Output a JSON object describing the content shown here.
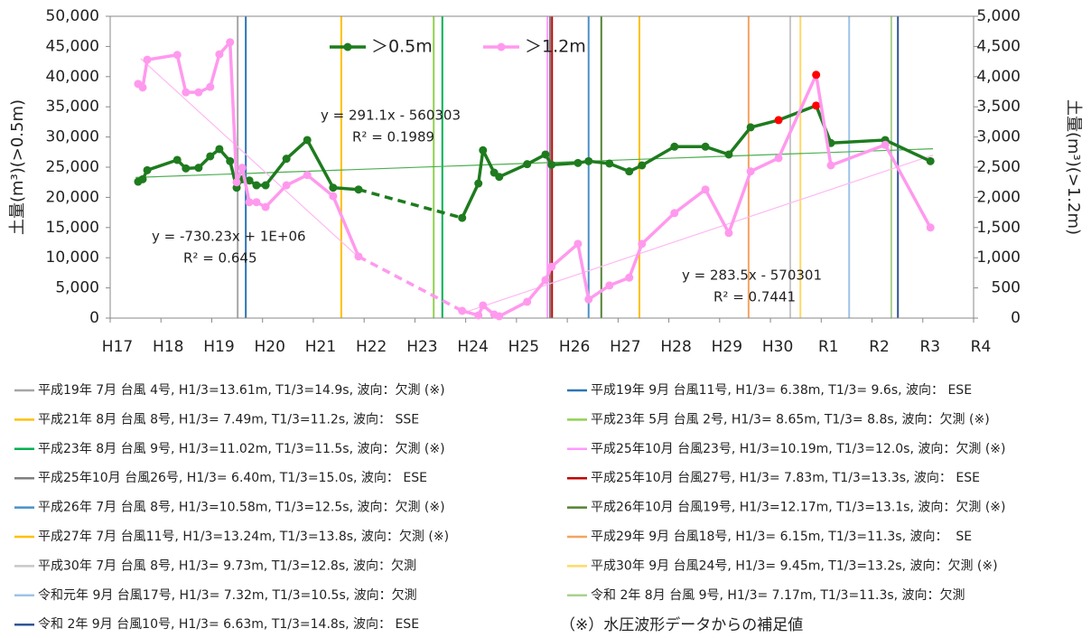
{
  "chart_data": {
    "type": "line",
    "y_label": "土量(m³)(>0.5m)",
    "y2_label": "土量(m³)(>1.2m)",
    "x": [
      2005.55,
      2005.64,
      2005.73,
      2006.32,
      2006.49,
      2006.74,
      2006.97,
      2007.15,
      2007.36,
      2007.49,
      2007.6,
      2007.74,
      2007.88,
      2008.06,
      2008.47,
      2008.88,
      2009.39,
      2009.89,
      2011.93,
      2012.25,
      2012.34,
      2012.56,
      2012.66,
      2013.21,
      2013.57,
      2013.69,
      2014.21,
      2014.42,
      2014.83,
      2015.22,
      2015.47,
      2016.11,
      2016.72,
      2017.18,
      2017.61,
      2018.16,
      2018.9,
      2019.19,
      2020.26,
      2021.15
    ],
    "series": [
      {
        "name": "＞0.5m",
        "color": "#1e7b1e",
        "axis": "y",
        "values": [
          22600,
          23000,
          24500,
          26200,
          24800,
          24900,
          26800,
          28000,
          26000,
          21600,
          23000,
          22800,
          22000,
          22000,
          26400,
          29500,
          21600,
          21300,
          16600,
          22300,
          27800,
          24100,
          23400,
          25500,
          27100,
          25400,
          25700,
          26000,
          25600,
          24300,
          25300,
          28400,
          28400,
          27100,
          31600,
          32800,
          35200,
          29000,
          29500,
          26000
        ],
        "dashed_segments": [
          [
            17,
            18
          ]
        ],
        "highlight_points": [
          35,
          36
        ],
        "highlight_color": "#ff0000"
      },
      {
        "name": "＞1.2m",
        "color": "#ff99ee",
        "axis": "y2",
        "values": [
          3880,
          3820,
          4280,
          4360,
          3740,
          3740,
          3830,
          4370,
          4570,
          2250,
          2490,
          1920,
          1920,
          1840,
          2200,
          2370,
          2020,
          1020,
          120,
          45,
          210,
          60,
          30,
          270,
          630,
          850,
          1230,
          310,
          540,
          670,
          1230,
          1740,
          2130,
          1410,
          2430,
          2650,
          4030,
          2530,
          2870,
          1500
        ],
        "dashed_segments": [
          [
            17,
            18
          ]
        ],
        "highlight_points": [
          36
        ],
        "highlight_color": "#ff0000"
      }
    ],
    "trendlines": [
      {
        "series": 0,
        "color": "#4caf50",
        "x": [
          2005.5,
          2021.2
        ],
        "values": [
          23300,
          28050
        ],
        "label": "y = 291.1x - 560303",
        "r2_label": "R² = 0.1989"
      },
      {
        "series": 1,
        "color": "#ffb8f2",
        "x": [
          2005.6,
          2009.9
        ],
        "values": [
          4300,
          1000
        ],
        "label": "y = -730.23x + 1E+06",
        "r2_label": "R² = 0.645"
      },
      {
        "series": 1,
        "color": "#ffb8f2",
        "x": [
          2012.0,
          2021.2
        ],
        "values": [
          100,
          2700
        ],
        "label": "y = 283.5x - 570301",
        "r2_label": "R² = 0.7441"
      }
    ],
    "events": [
      {
        "label": "平成19年 7月 台風 4号, H1/3=13.61m, T1/3=14.9s, 波向：欠測 (※)",
        "x": 2007.51,
        "color": "#a6a6a6"
      },
      {
        "label": "平成19年 9月 台風11号, H1/3= 6.38m, T1/3= 9.6s, 波向： ESE",
        "x": 2007.67,
        "color": "#2e75b6"
      },
      {
        "label": "平成21年 8月 台風 8号, H1/3= 7.49m, T1/3=11.2s, 波向： SSE",
        "x": 2009.55,
        "color": "#ffc000"
      },
      {
        "label": "平成23年 5月 台風 2号, H1/3= 8.65m, T1/3= 8.8s, 波向：欠測 (※)",
        "x": 2011.37,
        "color": "#92d050"
      },
      {
        "label": "平成23年 8月 台風 9号, H1/3=11.02m, T1/3=11.5s, 波向：欠測 (※)",
        "x": 2011.54,
        "color": "#00b050"
      },
      {
        "label": "平成25年10月 台風23号, H1/3=10.19m, T1/3=12.0s, 波向：欠測 (※)",
        "x": 2013.61,
        "color": "#ff99ff"
      },
      {
        "label": "平成25年10月 台風26号, H1/3= 6.40m, T1/3=15.0s, 波向： ESE",
        "x": 2013.66,
        "color": "#7f7f7f"
      },
      {
        "label": "平成25年10月 台風27号, H1/3= 7.83m, T1/3=13.3s, 波向： ESE",
        "x": 2013.7,
        "color": "#c00000"
      },
      {
        "label": "平成26年 7月 台風 8号, H1/3=10.58m, T1/3=12.5s, 波向：欠測 (※)",
        "x": 2014.42,
        "color": "#4a90c8"
      },
      {
        "label": "平成26年10月 台風19号, H1/3=12.17m, T1/3=13.1s, 波向：欠測 (※)",
        "x": 2014.67,
        "color": "#548235"
      },
      {
        "label": "平成27年 7月 台風11号, H1/3=13.24m, T1/3=13.8s, 波向：欠測 (※)",
        "x": 2015.42,
        "color": "#ffc000"
      },
      {
        "label": "平成29年 9月 台風18号, H1/3= 6.15m, T1/3=11.3s, 波向：  SE",
        "x": 2017.57,
        "color": "#f4a460"
      },
      {
        "label": "平成30年 7月 台風 8号, H1/3= 9.73m, T1/3=12.8s, 波向：欠測",
        "x": 2018.39,
        "color": "#c8c8c8"
      },
      {
        "label": "平成30年 9月 台風24号, H1/3= 9.45m, T1/3=13.2s, 波向：欠測 (※)",
        "x": 2018.59,
        "color": "#ffd966"
      },
      {
        "label": "令和元年 9月 台風17号, H1/3= 7.32m, T1/3=10.5s, 波向：欠測",
        "x": 2019.55,
        "color": "#9dc3e6"
      },
      {
        "label": "令和 2年 8月 台風 9号, H1/3= 7.17m, T1/3=11.3s, 波向：欠測",
        "x": 2020.38,
        "color": "#a9d18e"
      },
      {
        "label": "令和 2年 9月 台風10号, H1/3= 6.63m, T1/3=14.8s, 波向： ESE",
        "x": 2020.51,
        "color": "#2f5597"
      }
    ],
    "note": "（※）水圧波形データからの補足値",
    "xlim": [
      2005,
      2022
    ],
    "xticks": [
      {
        "value": 2005,
        "label": "H17"
      },
      {
        "value": 2006,
        "label": "H18"
      },
      {
        "value": 2007,
        "label": "H19"
      },
      {
        "value": 2008,
        "label": "H20"
      },
      {
        "value": 2009,
        "label": "H21"
      },
      {
        "value": 2010,
        "label": "H22"
      },
      {
        "value": 2011,
        "label": "H23"
      },
      {
        "value": 2012,
        "label": "H24"
      },
      {
        "value": 2013,
        "label": "H25"
      },
      {
        "value": 2014,
        "label": "H26"
      },
      {
        "value": 2015,
        "label": "H27"
      },
      {
        "value": 2016,
        "label": "H28"
      },
      {
        "value": 2017,
        "label": "H29"
      },
      {
        "value": 2018,
        "label": "H30"
      },
      {
        "value": 2019,
        "label": "R1"
      },
      {
        "value": 2020,
        "label": "R2"
      },
      {
        "value": 2021,
        "label": "R3"
      },
      {
        "value": 2022,
        "label": "R4"
      }
    ],
    "ylim": [
      0,
      50000
    ],
    "yticks": [
      0,
      {
        "value": 5000,
        "label": "5,000"
      },
      {
        "value": 10000,
        "label": "10,000"
      },
      {
        "value": 15000,
        "label": "15,000"
      },
      {
        "value": 20000,
        "label": "20,000"
      },
      {
        "value": 25000,
        "label": "25,000"
      },
      {
        "value": 30000,
        "label": "30,000"
      },
      {
        "value": 35000,
        "label": "35,000"
      },
      {
        "value": 40000,
        "label": "40,000"
      },
      {
        "value": 45000,
        "label": "45,000"
      },
      {
        "value": 50000,
        "label": "50,000"
      }
    ],
    "y2lim": [
      0,
      5000
    ],
    "y2ticks": [
      0,
      500,
      {
        "value": 1000,
        "label": "1,000"
      },
      {
        "value": 1500,
        "label": "1,500"
      },
      {
        "value": 2000,
        "label": "2,000"
      },
      {
        "value": 2500,
        "label": "2,500"
      },
      {
        "value": 3000,
        "label": "3,000"
      },
      {
        "value": 3500,
        "label": "3,500"
      },
      {
        "value": 4000,
        "label": "4,000"
      },
      {
        "value": 4500,
        "label": "4,500"
      },
      {
        "value": 5000,
        "label": "5,000"
      }
    ],
    "legend": "top"
  }
}
